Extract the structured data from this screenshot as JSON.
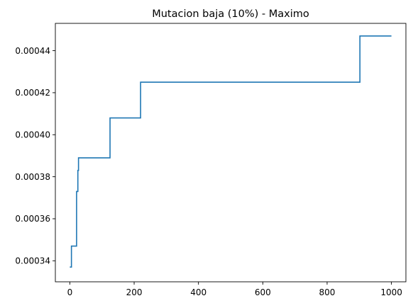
{
  "chart_data": {
    "type": "line",
    "title": "Mutacion baja (10%) - Maximo",
    "xlabel": "",
    "ylabel": "",
    "xlim": [
      -45,
      1045
    ],
    "ylim": [
      0.00033,
      0.000453
    ],
    "grid": false,
    "xticks": [
      0,
      200,
      400,
      600,
      800,
      1000
    ],
    "xtick_labels": [
      "0",
      "200",
      "400",
      "600",
      "800",
      "1000"
    ],
    "yticks": [
      0.00034,
      0.00036,
      0.00038,
      0.0004,
      0.00042,
      0.00044
    ],
    "ytick_labels": [
      "0.00034",
      "0.00036",
      "0.00038",
      "0.00040",
      "0.00042",
      "0.00044"
    ],
    "series": [
      {
        "color": "#1f77b4",
        "step": "post",
        "x": [
          0,
          5,
          21,
          23,
          25,
          27,
          125,
          127,
          150,
          220,
          222,
          900,
          902,
          1000
        ],
        "values": [
          0.000337,
          0.000347,
          0.000373,
          0.000373,
          0.000383,
          0.000389,
          0.000408,
          0.000408,
          0.000408,
          0.000425,
          0.000425,
          0.000425,
          0.000447,
          0.000447
        ]
      }
    ]
  }
}
